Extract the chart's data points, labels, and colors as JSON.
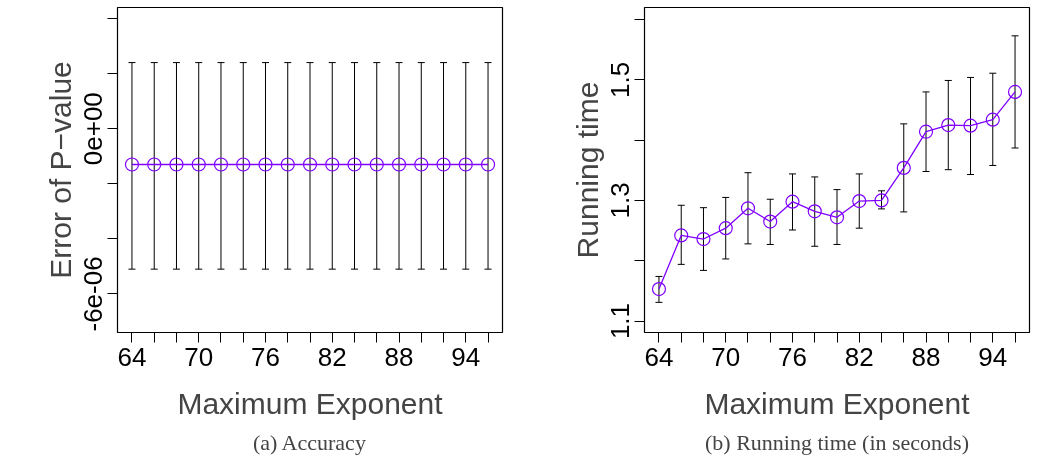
{
  "chart_data": [
    {
      "type": "line",
      "title": "(a) Accuracy",
      "xlabel": "Maximum Exponent",
      "ylabel": "Error of P−value",
      "x": [
        64,
        66,
        68,
        70,
        72,
        74,
        76,
        78,
        80,
        82,
        84,
        86,
        88,
        90,
        92,
        94,
        96
      ],
      "series": [
        {
          "color": "#7f00ff",
          "values": [
            -1.3e-06,
            -1.3e-06,
            -1.3e-06,
            -1.3e-06,
            -1.3e-06,
            -1.3e-06,
            -1.3e-06,
            -1.3e-06,
            -1.3e-06,
            -1.3e-06,
            -1.3e-06,
            -1.3e-06,
            -1.3e-06,
            -1.3e-06,
            -1.3e-06,
            -1.3e-06,
            -1.3e-06
          ],
          "errors": [
            [
              -5.1e-06,
              2.4e-06
            ],
            [
              -5.1e-06,
              2.4e-06
            ],
            [
              -5.1e-06,
              2.4e-06
            ],
            [
              -5.1e-06,
              2.4e-06
            ],
            [
              -5.1e-06,
              2.4e-06
            ],
            [
              -5.1e-06,
              2.4e-06
            ],
            [
              -5.1e-06,
              2.4e-06
            ],
            [
              -5.1e-06,
              2.4e-06
            ],
            [
              -5.1e-06,
              2.4e-06
            ],
            [
              -5.1e-06,
              2.4e-06
            ],
            [
              -5.1e-06,
              2.4e-06
            ],
            [
              -5.1e-06,
              2.4e-06
            ],
            [
              -5.1e-06,
              2.4e-06
            ],
            [
              -5.1e-06,
              2.4e-06
            ],
            [
              -5.1e-06,
              2.4e-06
            ],
            [
              -5.1e-06,
              2.4e-06
            ],
            [
              -5.1e-06,
              2.4e-06
            ]
          ]
        }
      ],
      "xlim": [
        62.7,
        97.3
      ],
      "ylim": [
        -7.4e-06,
        4.4e-06
      ],
      "xticks": [
        64,
        {
          "value": 66,
          "label": null
        },
        {
          "value": 68,
          "label": null
        },
        70,
        {
          "value": 72,
          "label": null
        },
        {
          "value": 74,
          "label": null
        },
        76,
        {
          "value": 78,
          "label": null
        },
        {
          "value": 80,
          "label": null
        },
        82,
        {
          "value": 84,
          "label": null
        },
        {
          "value": 86,
          "label": null
        },
        88,
        {
          "value": 90,
          "label": null
        },
        {
          "value": 92,
          "label": null
        },
        94,
        {
          "value": 96,
          "label": null
        }
      ],
      "yticks": [
        {
          "value": -6e-06,
          "label": "-6e-06"
        },
        {
          "value": -4e-06,
          "label": null
        },
        {
          "value": -2e-06,
          "label": null
        },
        {
          "value": 0,
          "label": "0e+00"
        },
        {
          "value": 2e-06,
          "label": null
        },
        {
          "value": 4e-06,
          "label": null
        }
      ],
      "marker": "circle",
      "line_style": "solid",
      "grid": false
    },
    {
      "type": "line",
      "title": "(b) Running time (in seconds)",
      "xlabel": "Maximum Exponent",
      "ylabel": "Running time",
      "x": [
        64,
        66,
        68,
        70,
        72,
        74,
        76,
        78,
        80,
        82,
        84,
        86,
        88,
        90,
        92,
        94,
        96
      ],
      "series": [
        {
          "color": "#7f00ff",
          "values": [
            1.153,
            1.242,
            1.236,
            1.254,
            1.287,
            1.265,
            1.298,
            1.282,
            1.272,
            1.299,
            1.3,
            1.354,
            1.414,
            1.425,
            1.424,
            1.434,
            1.48
          ],
          "errors": [
            [
              1.131,
              1.174
            ],
            [
              1.194,
              1.292
            ],
            [
              1.184,
              1.288
            ],
            [
              1.203,
              1.305
            ],
            [
              1.228,
              1.346
            ],
            [
              1.227,
              1.302
            ],
            [
              1.251,
              1.344
            ],
            [
              1.224,
              1.339
            ],
            [
              1.227,
              1.318
            ],
            [
              1.254,
              1.344
            ],
            [
              1.286,
              1.316
            ],
            [
              1.281,
              1.427
            ],
            [
              1.348,
              1.48
            ],
            [
              1.351,
              1.499
            ],
            [
              1.343,
              1.504
            ],
            [
              1.358,
              1.511
            ],
            [
              1.387,
              1.573
            ]
          ]
        }
      ],
      "xlim": [
        62.7,
        97.3
      ],
      "ylim": [
        1.081,
        1.62
      ],
      "xticks": [
        64,
        {
          "value": 66,
          "label": null
        },
        {
          "value": 68,
          "label": null
        },
        70,
        {
          "value": 72,
          "label": null
        },
        {
          "value": 74,
          "label": null
        },
        76,
        {
          "value": 78,
          "label": null
        },
        {
          "value": 80,
          "label": null
        },
        82,
        {
          "value": 84,
          "label": null
        },
        {
          "value": 86,
          "label": null
        },
        88,
        {
          "value": 90,
          "label": null
        },
        {
          "value": 92,
          "label": null
        },
        94,
        {
          "value": 96,
          "label": null
        }
      ],
      "yticks": [
        1.1,
        {
          "value": 1.2,
          "label": null
        },
        1.3,
        {
          "value": 1.4,
          "label": null
        },
        1.5,
        {
          "value": 1.6,
          "label": null
        }
      ],
      "marker": "circle",
      "line_style": "solid",
      "grid": false
    }
  ]
}
